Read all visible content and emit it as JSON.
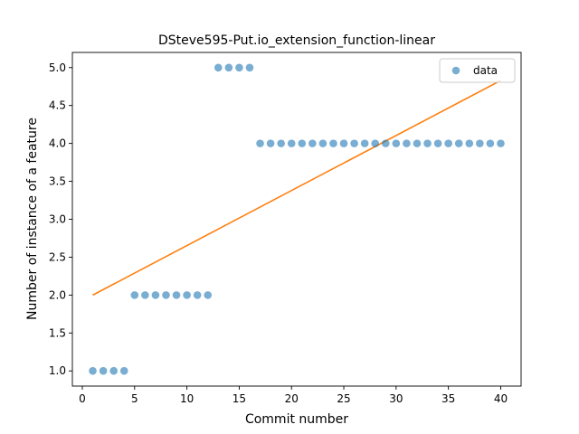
{
  "chart_data": {
    "type": "scatter",
    "title": "DSteve595-Put.io_extension_function-linear",
    "xlabel": "Commit number",
    "ylabel": "Number of instance of a feature",
    "xlim": [
      -0.95,
      41.95
    ],
    "ylim": [
      0.8,
      5.2
    ],
    "xticks": [
      0,
      5,
      10,
      15,
      20,
      25,
      30,
      35,
      40
    ],
    "yticks": [
      1.0,
      1.5,
      2.0,
      2.5,
      3.0,
      3.5,
      4.0,
      4.5,
      5.0
    ],
    "xtick_labels": [
      "0",
      "5",
      "10",
      "15",
      "20",
      "25",
      "30",
      "35",
      "40"
    ],
    "ytick_labels": [
      "1.0",
      "1.5",
      "2.0",
      "2.5",
      "3.0",
      "3.5",
      "4.0",
      "4.5",
      "5.0"
    ],
    "legend_position": "top-right",
    "series": [
      {
        "name": "data",
        "kind": "scatter",
        "color": "#1f77b4",
        "x": [
          1,
          2,
          3,
          4,
          5,
          6,
          7,
          8,
          9,
          10,
          11,
          12,
          13,
          14,
          15,
          16,
          17,
          18,
          19,
          20,
          21,
          22,
          23,
          24,
          25,
          26,
          27,
          28,
          29,
          30,
          31,
          32,
          33,
          34,
          35,
          36,
          37,
          38,
          39,
          40
        ],
        "y": [
          1,
          1,
          1,
          1,
          2,
          2,
          2,
          2,
          2,
          2,
          2,
          2,
          5,
          5,
          5,
          5,
          4,
          4,
          4,
          4,
          4,
          4,
          4,
          4,
          4,
          4,
          4,
          4,
          4,
          4,
          4,
          4,
          4,
          4,
          4,
          4,
          4,
          4,
          4,
          4
        ]
      },
      {
        "kind": "line",
        "color": "#ff7f0e",
        "x": [
          1,
          40
        ],
        "y": [
          2.0,
          4.83
        ]
      }
    ]
  }
}
